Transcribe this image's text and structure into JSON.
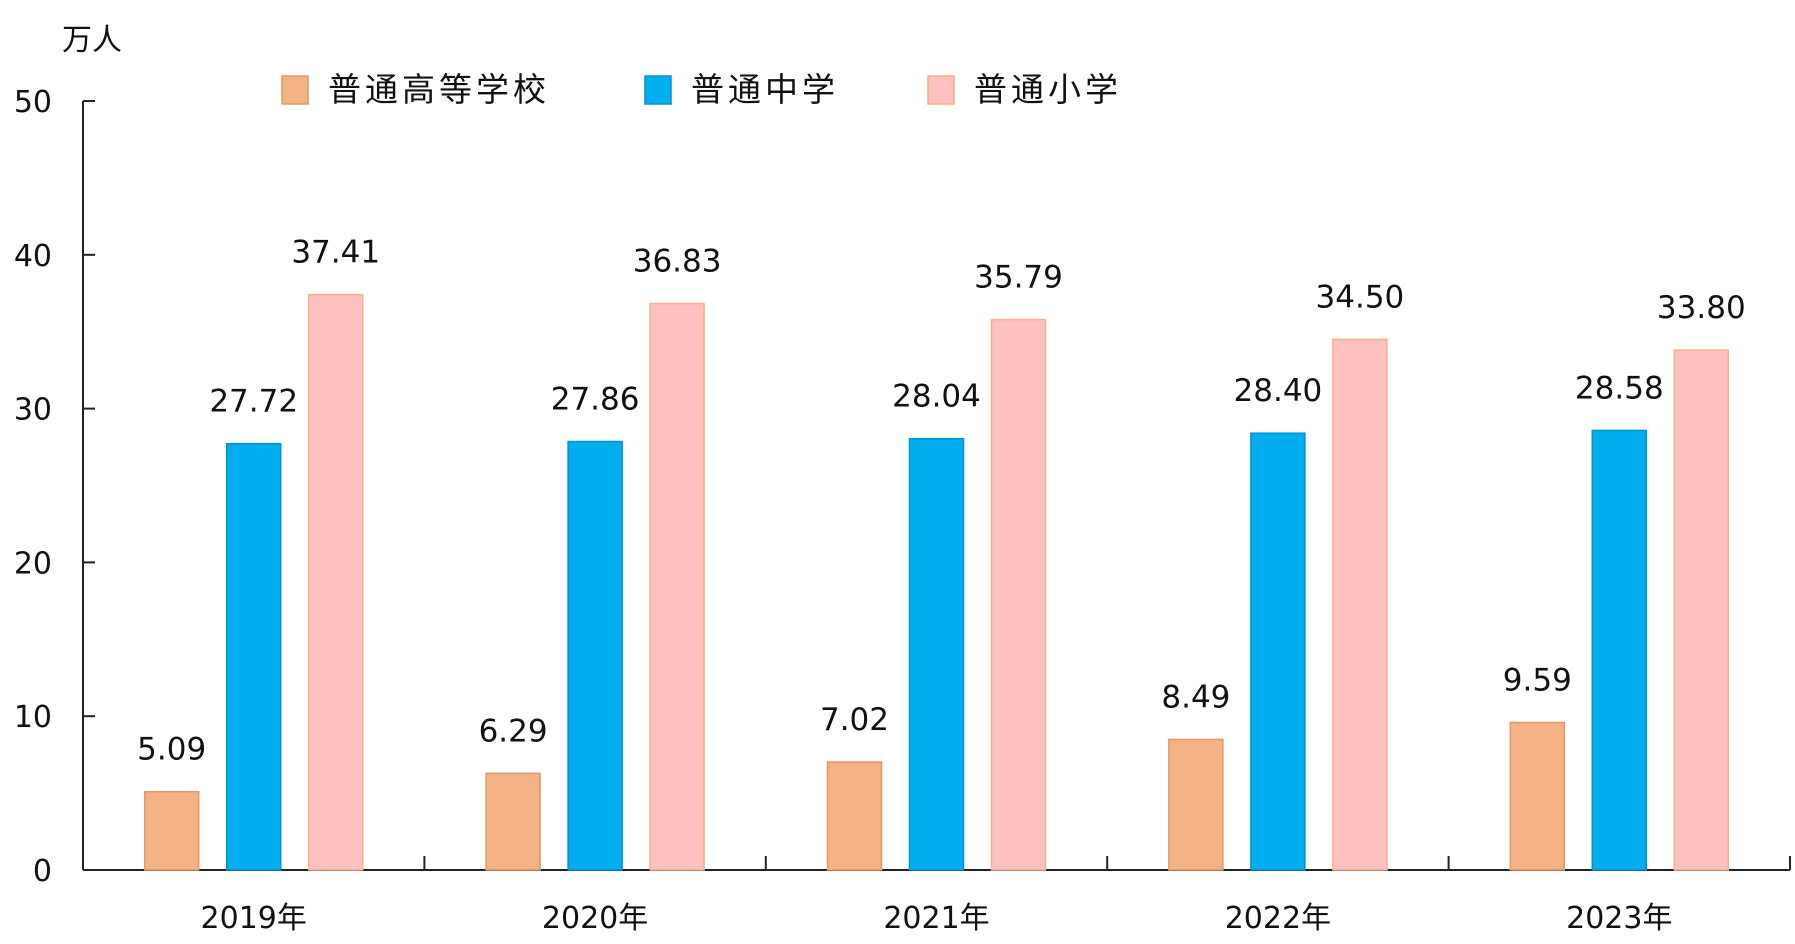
{
  "chart_data": {
    "type": "bar",
    "unit_label": "万人",
    "categories": [
      "2019年",
      "2020年",
      "2021年",
      "2022年",
      "2023年"
    ],
    "series": [
      {
        "name": "普通高等学校",
        "color": "#F4B183",
        "values": [
          5.09,
          6.29,
          7.02,
          8.49,
          9.59
        ],
        "labels": [
          "5.09",
          "6.29",
          "7.02",
          "8.49",
          "9.59"
        ]
      },
      {
        "name": "普通中学",
        "color": "#00AEEF",
        "values": [
          27.72,
          27.86,
          28.04,
          28.4,
          28.58
        ],
        "labels": [
          "27.72",
          "27.86",
          "28.04",
          "28.40",
          "28.58"
        ]
      },
      {
        "name": "普通小学",
        "color": "#FFC0C0",
        "values": [
          37.41,
          36.83,
          35.79,
          34.5,
          33.8
        ],
        "labels": [
          "37.41",
          "36.83",
          "35.79",
          "34.50",
          "33.80"
        ]
      }
    ],
    "ylim": [
      0,
      50
    ],
    "yticks": [
      "0",
      "10",
      "20",
      "30",
      "40",
      "50"
    ],
    "grid": false,
    "legend_position": "top"
  }
}
